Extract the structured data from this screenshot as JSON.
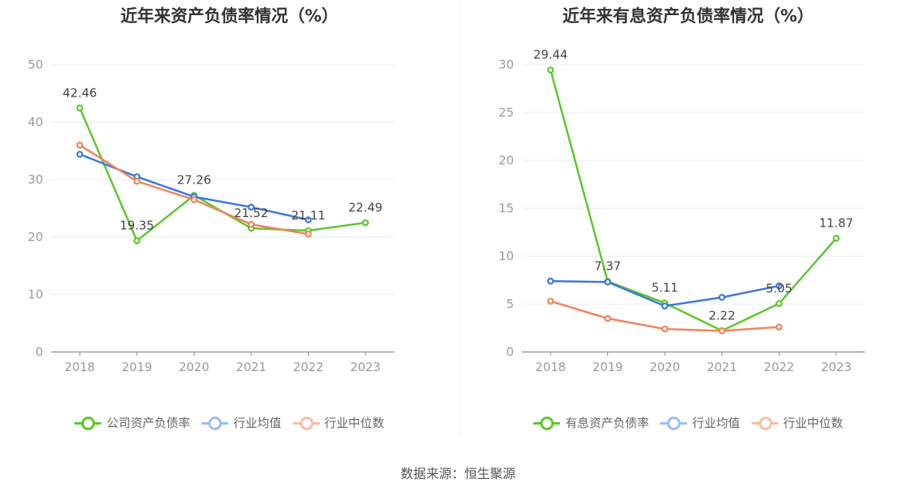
{
  "chart_data": [
    {
      "type": "line",
      "title": "近年来资产负债率情况（%）",
      "categories": [
        "2018",
        "2019",
        "2020",
        "2021",
        "2022",
        "2023"
      ],
      "ylim": [
        0,
        50
      ],
      "yticks": [
        0,
        10,
        20,
        30,
        40,
        50
      ],
      "grid": true,
      "legend_position": "bottom",
      "series": [
        {
          "name": "公司资产负债率",
          "color": "#5cc72c",
          "labeled": true,
          "values": [
            42.46,
            19.35,
            27.26,
            21.52,
            21.11,
            22.49
          ],
          "labels": [
            "42.46",
            "19.35",
            "27.26",
            "21.52",
            "21.11",
            "22.49"
          ]
        },
        {
          "name": "行业均值",
          "color": "#3b78e0",
          "labeled": false,
          "values": [
            34.4,
            30.5,
            27.0,
            25.2,
            23.0,
            null
          ]
        },
        {
          "name": "行业中位数",
          "color": "#f0845c",
          "labeled": false,
          "values": [
            36.0,
            29.7,
            26.5,
            22.2,
            20.5,
            null
          ]
        }
      ]
    },
    {
      "type": "line",
      "title": "近年来有息资产负债率情况（%）",
      "categories": [
        "2018",
        "2019",
        "2020",
        "2021",
        "2022",
        "2023"
      ],
      "ylim": [
        0,
        30
      ],
      "yticks": [
        0,
        5,
        10,
        15,
        20,
        25,
        30
      ],
      "grid": true,
      "legend_position": "bottom",
      "series": [
        {
          "name": "有息资产负债率",
          "color": "#5cc72c",
          "labeled": true,
          "values": [
            29.44,
            7.37,
            5.11,
            2.22,
            5.05,
            11.87
          ],
          "labels": [
            "29.44",
            "7.37",
            "5.11",
            "2.22",
            "5.05",
            "11.87"
          ]
        },
        {
          "name": "行业均值",
          "color": "#3b78e0",
          "labeled": false,
          "values": [
            7.4,
            7.3,
            4.8,
            5.7,
            6.9,
            null
          ]
        },
        {
          "name": "行业中位数",
          "color": "#f0845c",
          "labeled": false,
          "values": [
            5.3,
            3.5,
            2.4,
            2.2,
            2.6,
            null
          ]
        }
      ]
    }
  ],
  "source": "数据来源：恒生聚源"
}
